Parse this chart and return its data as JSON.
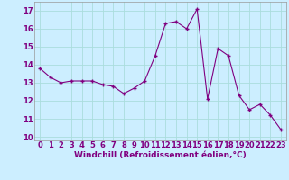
{
  "x": [
    0,
    1,
    2,
    3,
    4,
    5,
    6,
    7,
    8,
    9,
    10,
    11,
    12,
    13,
    14,
    15,
    16,
    17,
    18,
    19,
    20,
    21,
    22,
    23
  ],
  "y": [
    13.8,
    13.3,
    13.0,
    13.1,
    13.1,
    13.1,
    12.9,
    12.8,
    12.4,
    12.7,
    13.1,
    14.5,
    16.3,
    16.4,
    16.0,
    17.1,
    12.1,
    14.9,
    14.5,
    12.3,
    11.5,
    11.8,
    11.2,
    10.4
  ],
  "line_color": "#800080",
  "marker": "+",
  "marker_size": 3,
  "marker_lw": 1.0,
  "line_width": 0.8,
  "bg_color": "#cceeff",
  "grid_color": "#aadddd",
  "xlabel": "Windchill (Refroidissement éolien,°C)",
  "xlabel_fontsize": 6.5,
  "tick_fontsize": 6.0,
  "tick_color": "#800080",
  "label_color": "#800080",
  "ylim": [
    9.8,
    17.5
  ],
  "yticks": [
    10,
    11,
    12,
    13,
    14,
    15,
    16,
    17
  ],
  "xlim": [
    -0.5,
    23.5
  ],
  "xticks": [
    0,
    1,
    2,
    3,
    4,
    5,
    6,
    7,
    8,
    9,
    10,
    11,
    12,
    13,
    14,
    15,
    16,
    17,
    18,
    19,
    20,
    21,
    22,
    23
  ]
}
